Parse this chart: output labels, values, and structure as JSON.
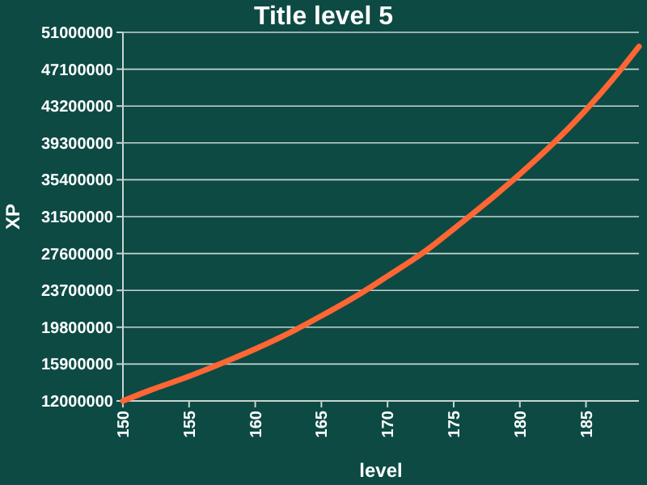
{
  "chart_data": {
    "type": "line",
    "title": "Title level 5",
    "xlabel": "level",
    "ylabel": "XP",
    "x": [
      150,
      152,
      155,
      158,
      160,
      163,
      165,
      168,
      170,
      173,
      175,
      178,
      180,
      183,
      185,
      187,
      189
    ],
    "series": [
      {
        "color": "#ff6633",
        "values": [
          12000000,
          13100000,
          14600000,
          16300000,
          17500000,
          19500000,
          21000000,
          23400000,
          25200000,
          28000000,
          30200000,
          33600000,
          36000000,
          39900000,
          42800000,
          46000000,
          49500000
        ]
      }
    ],
    "xlim": [
      150,
      189
    ],
    "xticks": [
      150,
      155,
      160,
      165,
      170,
      175,
      180,
      185
    ],
    "ylim": [
      12000000,
      51000000
    ],
    "yticks": [
      12000000,
      15900000,
      19800000,
      23700000,
      27600000,
      31500000,
      35400000,
      39300000,
      43200000,
      47100000,
      51000000
    ],
    "grid": "y",
    "marker": "none",
    "line_style": "solid"
  }
}
